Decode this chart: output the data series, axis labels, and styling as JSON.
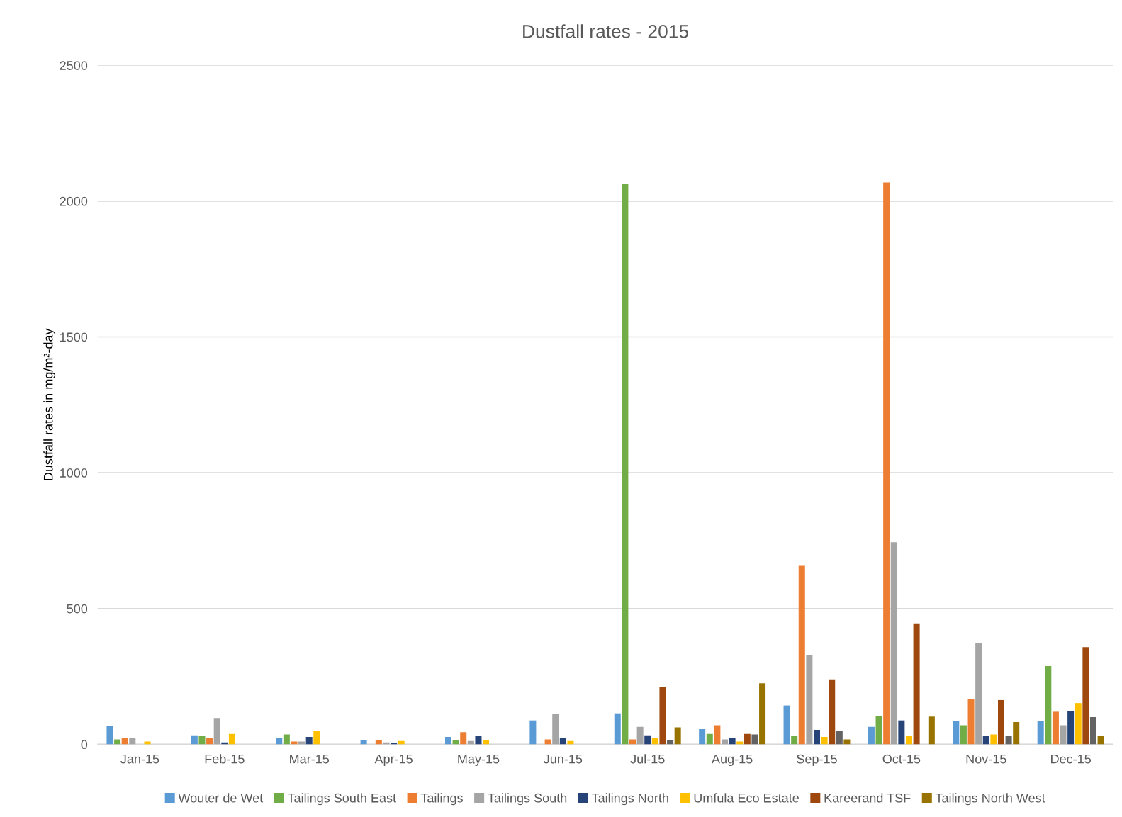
{
  "chart_data": {
    "type": "bar",
    "title": "Dustfall rates - 2015",
    "ylabel": "Dustfall rates in mg/m²-day",
    "categories": [
      "Jan-15",
      "Feb-15",
      "Mar-15",
      "Apr-15",
      "May-15",
      "Jun-15",
      "Jul-15",
      "Aug-15",
      "Sep-15",
      "Oct-15",
      "Nov-15",
      "Dec-15"
    ],
    "ylim": [
      0,
      2500
    ],
    "yticks": [
      0,
      500,
      1000,
      1500,
      2000,
      2500
    ],
    "grid": "y",
    "legend": "bottom",
    "series": [
      {
        "name": "Wouter de Wet",
        "color": "#5b9bd5",
        "values": [
          68,
          33,
          24,
          15,
          27,
          88,
          114,
          56,
          143,
          64,
          85,
          85
        ]
      },
      {
        "name": "Tailings South East",
        "color": "#70ad47",
        "values": [
          18,
          30,
          36,
          null,
          15,
          null,
          2065,
          38,
          30,
          105,
          70,
          288
        ]
      },
      {
        "name": "Tailings",
        "color": "#ed7d31",
        "values": [
          22,
          24,
          10,
          15,
          45,
          18,
          18,
          70,
          657,
          2069,
          166,
          120
        ]
      },
      {
        "name": "Tailings South",
        "color": "#a5a5a5",
        "values": [
          22,
          97,
          10,
          7,
          12,
          111,
          64,
          18,
          329,
          744,
          372,
          70
        ]
      },
      {
        "name": "Tailings North",
        "color": "#264478",
        "values": [
          null,
          7,
          27,
          4,
          30,
          24,
          33,
          24,
          53,
          88,
          32,
          123
        ]
      },
      {
        "name": "Umfula Eco Estate",
        "color": "#ffc000",
        "values": [
          10,
          38,
          48,
          12,
          15,
          12,
          24,
          10,
          27,
          30,
          36,
          152
        ]
      },
      {
        "name": "Kareerand TSF",
        "color": "#9e480e",
        "values": [
          null,
          null,
          null,
          null,
          null,
          null,
          210,
          38,
          239,
          445,
          163,
          358
        ]
      },
      {
        "color": "#636363",
        "values": [
          null,
          null,
          null,
          null,
          null,
          null,
          15,
          36,
          48,
          null,
          32,
          100
        ]
      },
      {
        "name": "Tailings North West",
        "color": "#997300",
        "values": [
          null,
          null,
          null,
          null,
          null,
          null,
          62,
          225,
          18,
          102,
          82,
          32
        ]
      }
    ]
  }
}
